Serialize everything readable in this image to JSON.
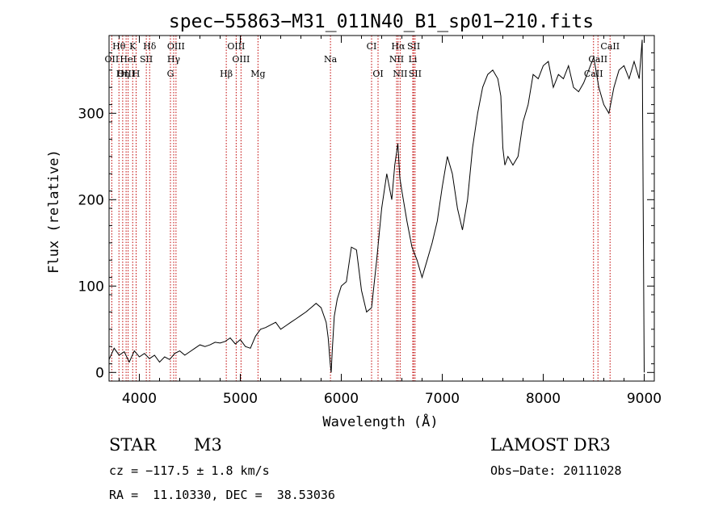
{
  "chart_data": {
    "type": "line",
    "title": "spec−55863−M31_011N40_B1_sp01−210.fits",
    "xlabel": "Wavelength (Å)",
    "ylabel": "Flux (relative)",
    "xlim": [
      3700,
      9100
    ],
    "ylim": [
      -10,
      390
    ],
    "x_ticks": [
      4000,
      5000,
      6000,
      7000,
      8000,
      9000
    ],
    "y_ticks": [
      0,
      100,
      200,
      300
    ],
    "series": [
      {
        "name": "flux",
        "x": [
          3700,
          3750,
          3800,
          3850,
          3900,
          3950,
          4000,
          4050,
          4100,
          4150,
          4200,
          4250,
          4300,
          4350,
          4400,
          4450,
          4500,
          4550,
          4600,
          4650,
          4700,
          4750,
          4800,
          4850,
          4900,
          4950,
          5000,
          5050,
          5100,
          5150,
          5200,
          5250,
          5300,
          5350,
          5400,
          5450,
          5500,
          5550,
          5600,
          5650,
          5700,
          5750,
          5800,
          5850,
          5870,
          5890,
          5900,
          5910,
          5930,
          5960,
          6000,
          6050,
          6100,
          6150,
          6200,
          6250,
          6300,
          6350,
          6400,
          6450,
          6500,
          6530,
          6560,
          6580,
          6600,
          6650,
          6700,
          6750,
          6800,
          6850,
          6900,
          6950,
          7000,
          7050,
          7100,
          7150,
          7200,
          7250,
          7300,
          7350,
          7400,
          7450,
          7500,
          7550,
          7580,
          7600,
          7620,
          7650,
          7700,
          7750,
          7800,
          7850,
          7900,
          7950,
          8000,
          8050,
          8100,
          8150,
          8200,
          8250,
          8300,
          8350,
          8400,
          8450,
          8500,
          8550,
          8600,
          8650,
          8700,
          8750,
          8800,
          8850,
          8900,
          8950,
          8980,
          9000
        ],
        "y": [
          15,
          28,
          20,
          24,
          12,
          25,
          18,
          22,
          16,
          20,
          12,
          18,
          15,
          22,
          25,
          20,
          24,
          28,
          32,
          30,
          32,
          35,
          34,
          36,
          40,
          33,
          38,
          30,
          28,
          42,
          50,
          52,
          55,
          58,
          50,
          54,
          58,
          62,
          66,
          70,
          75,
          80,
          75,
          58,
          40,
          10,
          0,
          25,
          65,
          85,
          100,
          105,
          145,
          142,
          95,
          70,
          75,
          130,
          190,
          230,
          200,
          240,
          265,
          225,
          210,
          175,
          145,
          130,
          110,
          130,
          150,
          175,
          215,
          250,
          230,
          190,
          165,
          200,
          260,
          300,
          330,
          345,
          350,
          340,
          320,
          260,
          240,
          250,
          240,
          250,
          290,
          310,
          345,
          340,
          355,
          360,
          330,
          345,
          340,
          355,
          330,
          325,
          335,
          350,
          365,
          330,
          310,
          300,
          330,
          350,
          355,
          340,
          360,
          340,
          385,
          0
        ]
      }
    ],
    "spectral_lines": [
      {
        "label": "Hθ",
        "row": 0,
        "lines": [
          3798
        ]
      },
      {
        "label": "K",
        "row": 0,
        "lines": [
          3934
        ]
      },
      {
        "label": "Hδ",
        "row": 0,
        "lines": [
          4102
        ]
      },
      {
        "label": "OIII",
        "row": 0,
        "lines": [
          4363
        ]
      },
      {
        "label": "OIII",
        "row": 0,
        "lines": [
          4959
        ]
      },
      {
        "label": "CI",
        "row": 0,
        "lines": [
          6300
        ]
      },
      {
        "label": "Hα",
        "row": 0,
        "lines": [
          6563
        ]
      },
      {
        "label": "SII",
        "row": 0,
        "lines": [
          6717
        ]
      },
      {
        "label": "CaII",
        "row": 0,
        "lines": [
          8662
        ]
      },
      {
        "label": "OII",
        "row": 1,
        "lines": [
          3727
        ]
      },
      {
        "label": "HeI",
        "row": 1,
        "lines": [
          3889
        ]
      },
      {
        "label": "SII",
        "row": 1,
        "lines": [
          4069
        ]
      },
      {
        "label": "Hγ",
        "row": 1,
        "lines": [
          4340
        ]
      },
      {
        "label": "OIII",
        "row": 1,
        "lines": [
          5007
        ]
      },
      {
        "label": "Na",
        "row": 1,
        "lines": [
          5893
        ]
      },
      {
        "label": "NII",
        "row": 1,
        "lines": [
          6548
        ]
      },
      {
        "label": "Li",
        "row": 1,
        "lines": [
          6708
        ]
      },
      {
        "label": "CaII",
        "row": 1,
        "lines": [
          8542
        ]
      },
      {
        "label": "OIII",
        "row": 2,
        "lines": [
          3869
        ]
      },
      {
        "label": "Hη",
        "row": 2,
        "lines": [
          3835
        ]
      },
      {
        "label": "H",
        "row": 2,
        "lines": [
          3968
        ]
      },
      {
        "label": "G",
        "row": 2,
        "lines": [
          4308
        ]
      },
      {
        "label": "Hβ",
        "row": 2,
        "lines": [
          4861
        ]
      },
      {
        "label": "Mg",
        "row": 2,
        "lines": [
          5175
        ]
      },
      {
        "label": "OI",
        "row": 2,
        "lines": [
          6364
        ]
      },
      {
        "label": "NII",
        "row": 2,
        "lines": [
          6583
        ]
      },
      {
        "label": "SII",
        "row": 2,
        "lines": [
          6731
        ]
      },
      {
        "label": "CaII",
        "row": 2,
        "lines": [
          8498
        ]
      }
    ]
  },
  "info": {
    "object_class": "STAR",
    "subclass": "M3",
    "survey": "LAMOST DR3",
    "cz": "cz = −117.5 ± 1.8 km/s",
    "obs_date": "Obs−Date: 20111028",
    "coords": "RA =  11.10330, DEC =  38.53036"
  }
}
